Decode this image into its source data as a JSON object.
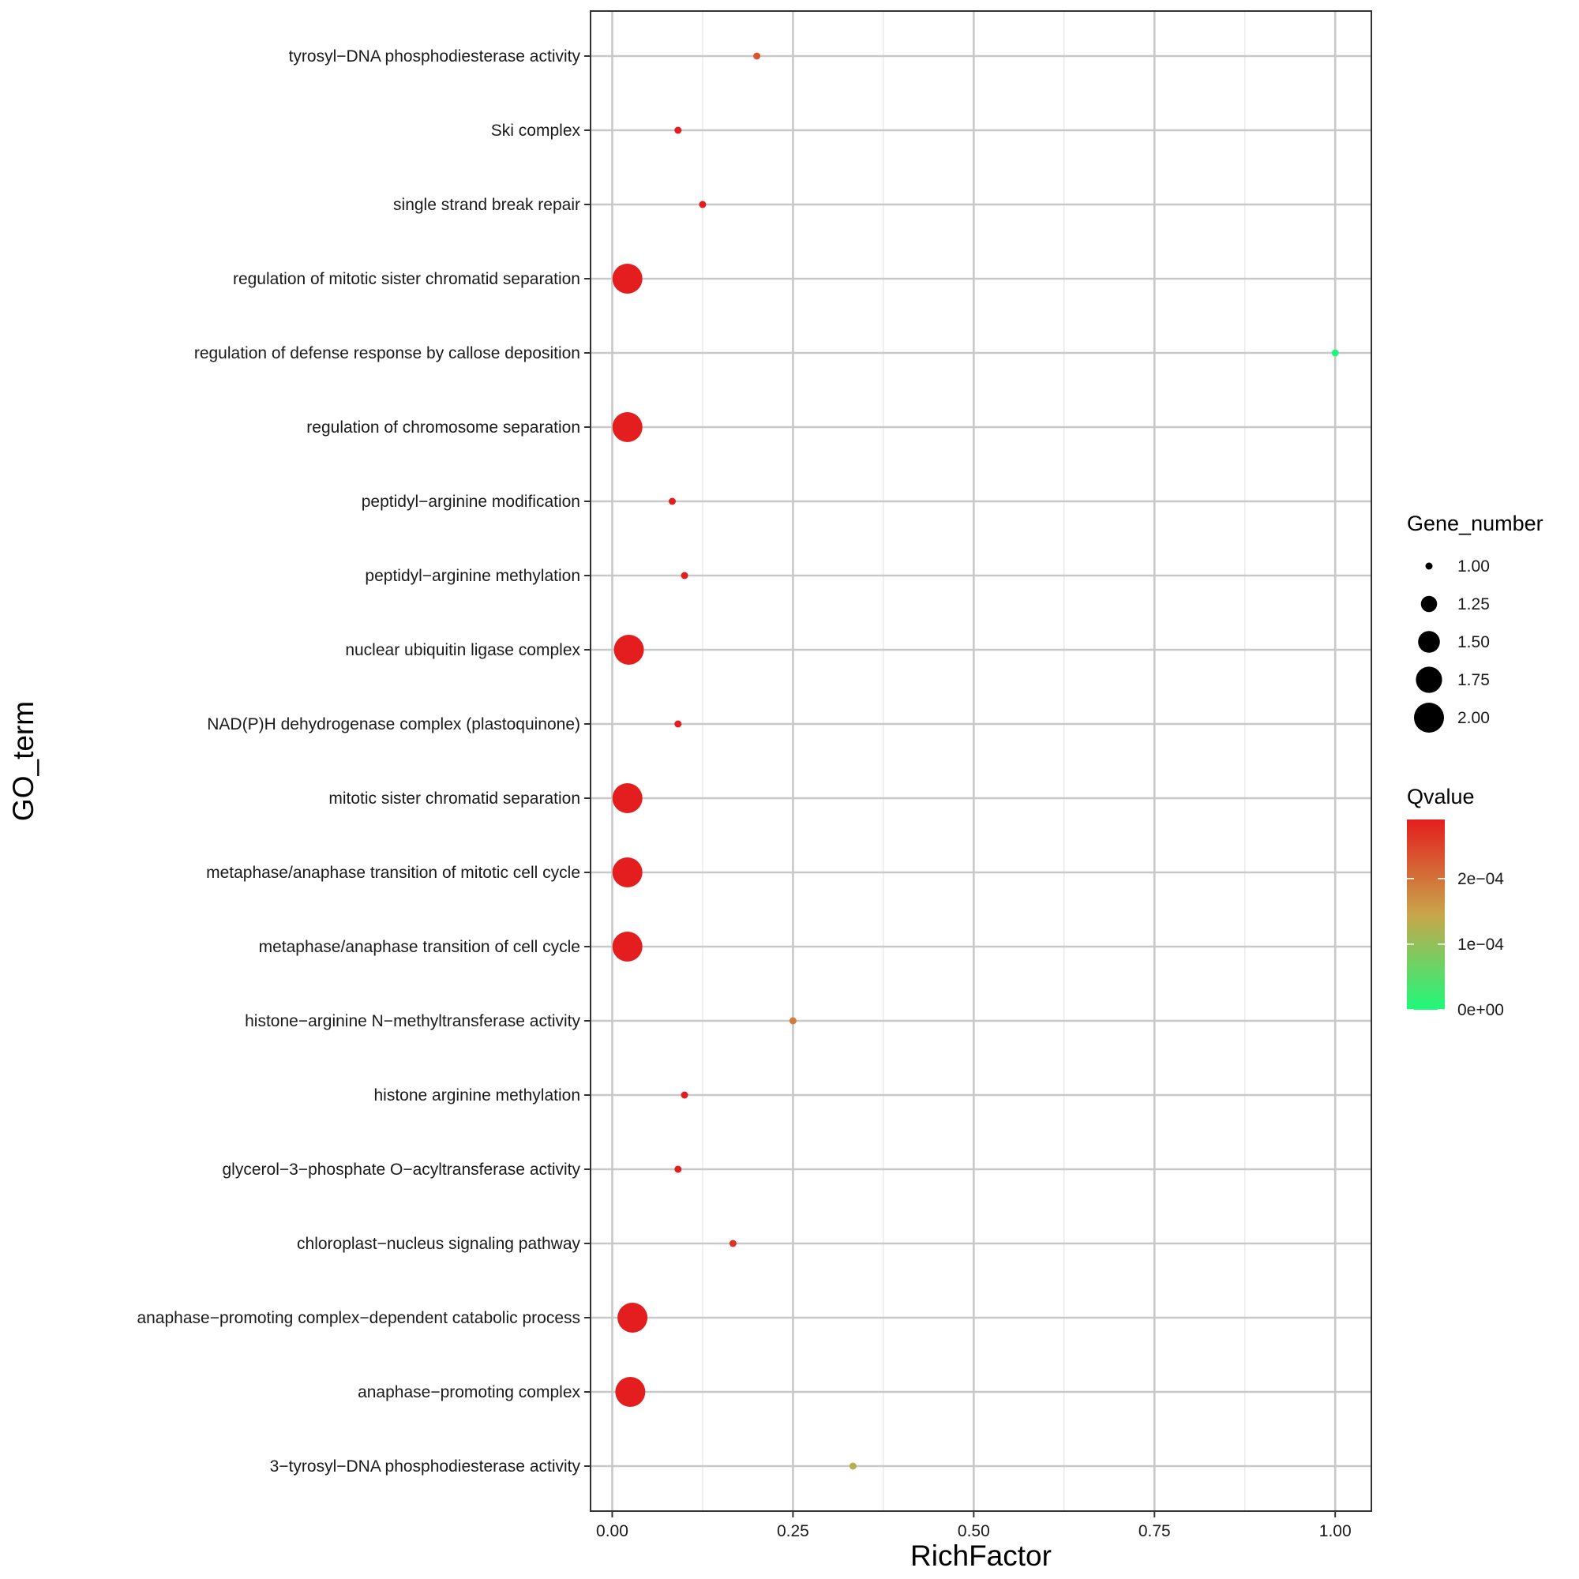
{
  "chart_data": {
    "type": "scatter",
    "title": "",
    "xlabel": "RichFactor",
    "ylabel": "GO_term",
    "xlim": [
      -0.03,
      1.05
    ],
    "x_ticks": [
      0.0,
      0.25,
      0.5,
      0.75,
      1.0
    ],
    "x_tick_labels": [
      "0.00",
      "0.25",
      "0.50",
      "0.75",
      "1.00"
    ],
    "grid": true,
    "legend_position": "right",
    "categories": [
      "3-tyrosyl-DNA phosphodiesterase activity",
      "anaphase-promoting complex",
      "anaphase-promoting complex-dependent catabolic process",
      "chloroplast-nucleus signaling pathway",
      "glycerol-3-phosphate O-acyltransferase activity",
      "histone arginine methylation",
      "histone-arginine N-methyltransferase activity",
      "metaphase/anaphase transition of cell cycle",
      "metaphase/anaphase transition of mitotic cell cycle",
      "mitotic sister chromatid separation",
      "NAD(P)H dehydrogenase complex (plastoquinone)",
      "nuclear ubiquitin ligase complex",
      "peptidyl-arginine methylation",
      "peptidyl-arginine modification",
      "regulation of chromosome separation",
      "regulation of defense response by callose deposition",
      "regulation of mitotic sister chromatid separation",
      "single strand break repair",
      "Ski complex",
      "tyrosyl-DNA phosphodiesterase activity"
    ],
    "tick_labels": [
      "3−tyrosyl−DNA phosphodiesterase activity",
      "anaphase−promoting complex",
      "anaphase−promoting complex−dependent catabolic process",
      "chloroplast−nucleus signaling pathway",
      "glycerol−3−phosphate O−acyltransferase activity",
      "histone arginine methylation",
      "histone−arginine N−methyltransferase activity",
      "metaphase/anaphase transition of cell cycle",
      "metaphase/anaphase transition of mitotic cell cycle",
      "mitotic sister chromatid separation",
      "NAD(P)H dehydrogenase complex (plastoquinone)",
      "nuclear ubiquitin ligase complex",
      "peptidyl−arginine methylation",
      "peptidyl−arginine modification",
      "regulation of chromosome separation",
      "regulation of defense response by callose deposition",
      "regulation of mitotic sister chromatid separation",
      "single strand break repair",
      "Ski complex",
      "tyrosyl−DNA phosphodiesterase activity"
    ],
    "points": [
      {
        "term": "3-tyrosyl-DNA phosphodiesterase activity",
        "rich_factor": 0.333,
        "gene_number": 1,
        "qvalue": 0.00013
      },
      {
        "term": "anaphase-promoting complex",
        "rich_factor": 0.025,
        "gene_number": 2,
        "qvalue": 0.00029
      },
      {
        "term": "anaphase-promoting complex-dependent catabolic process",
        "rich_factor": 0.028,
        "gene_number": 2,
        "qvalue": 0.00029
      },
      {
        "term": "chloroplast-nucleus signaling pathway",
        "rich_factor": 0.167,
        "gene_number": 1,
        "qvalue": 0.00027
      },
      {
        "term": "glycerol-3-phosphate O-acyltransferase activity",
        "rich_factor": 0.091,
        "gene_number": 1,
        "qvalue": 0.00029
      },
      {
        "term": "histone arginine methylation",
        "rich_factor": 0.1,
        "gene_number": 1,
        "qvalue": 0.00029
      },
      {
        "term": "histone-arginine N-methyltransferase activity",
        "rich_factor": 0.25,
        "gene_number": 1,
        "qvalue": 0.00019
      },
      {
        "term": "metaphase/anaphase transition of cell cycle",
        "rich_factor": 0.021,
        "gene_number": 2,
        "qvalue": 0.00029
      },
      {
        "term": "metaphase/anaphase transition of mitotic cell cycle",
        "rich_factor": 0.021,
        "gene_number": 2,
        "qvalue": 0.00029
      },
      {
        "term": "mitotic sister chromatid separation",
        "rich_factor": 0.021,
        "gene_number": 2,
        "qvalue": 0.00029
      },
      {
        "term": "NAD(P)H dehydrogenase complex (plastoquinone)",
        "rich_factor": 0.091,
        "gene_number": 1,
        "qvalue": 0.00029
      },
      {
        "term": "nuclear ubiquitin ligase complex",
        "rich_factor": 0.023,
        "gene_number": 2,
        "qvalue": 0.00029
      },
      {
        "term": "peptidyl-arginine methylation",
        "rich_factor": 0.1,
        "gene_number": 1,
        "qvalue": 0.00029
      },
      {
        "term": "peptidyl-arginine modification",
        "rich_factor": 0.083,
        "gene_number": 1,
        "qvalue": 0.00029
      },
      {
        "term": "regulation of chromosome separation",
        "rich_factor": 0.021,
        "gene_number": 2,
        "qvalue": 0.00029
      },
      {
        "term": "regulation of defense response by callose deposition",
        "rich_factor": 1.0,
        "gene_number": 1,
        "qvalue": 0.0
      },
      {
        "term": "regulation of mitotic sister chromatid separation",
        "rich_factor": 0.021,
        "gene_number": 2,
        "qvalue": 0.00029
      },
      {
        "term": "single strand break repair",
        "rich_factor": 0.125,
        "gene_number": 1,
        "qvalue": 0.00029
      },
      {
        "term": "Ski complex",
        "rich_factor": 0.091,
        "gene_number": 1,
        "qvalue": 0.00029
      },
      {
        "term": "tyrosyl-DNA phosphodiesterase activity",
        "rich_factor": 0.2,
        "gene_number": 1,
        "qvalue": 0.00023
      }
    ],
    "legend_size": {
      "title": "Gene_number",
      "values": [
        1.0,
        1.25,
        1.5,
        1.75,
        2.0
      ],
      "labels": [
        "1.00",
        "1.25",
        "1.50",
        "1.75",
        "2.00"
      ]
    },
    "legend_color": {
      "title": "Qvalue",
      "range": [
        0,
        0.00029
      ],
      "breaks": [
        0,
        0.0001,
        0.0002
      ],
      "labels": [
        "0e+00",
        "1e−04",
        "2e−04"
      ],
      "low_color": "#1EF97C",
      "high_color": "#E41E1E"
    },
    "colors": {
      "panel_border": "#333333",
      "grid_major": "#c8c8c8",
      "grid_minor": "#e6e6e6",
      "point_black": "#000000"
    }
  }
}
